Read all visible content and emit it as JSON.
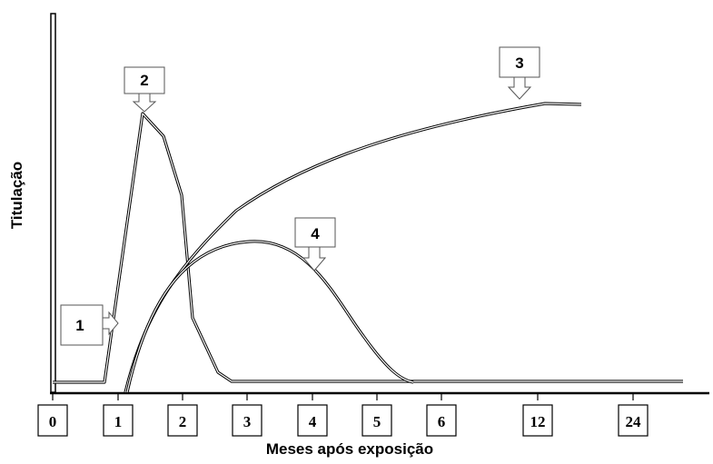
{
  "axis": {
    "y_title": "Titulação",
    "x_title": "Meses após exposição",
    "x_ticks": [
      "0",
      "1",
      "2",
      "3",
      "4",
      "5",
      "6",
      "12",
      "24"
    ]
  },
  "callouts": [
    "1",
    "2",
    "3",
    "4"
  ]
}
